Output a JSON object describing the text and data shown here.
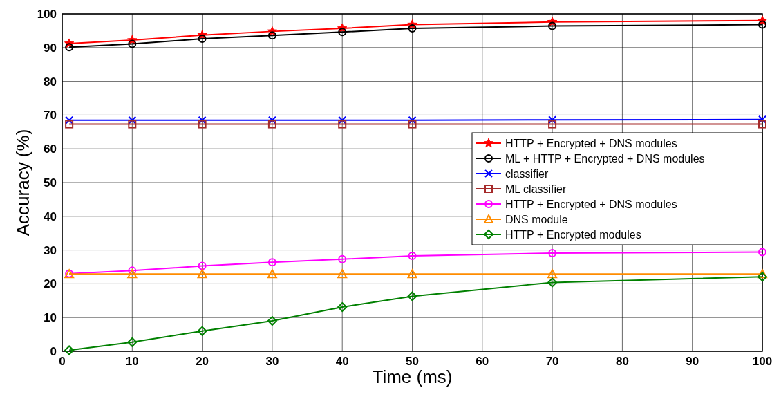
{
  "chart_data": {
    "type": "line",
    "xlabel": "Time (ms)",
    "ylabel": "Accuracy (%)",
    "x": [
      1,
      10,
      20,
      30,
      40,
      50,
      70,
      100
    ],
    "xlim": [
      0,
      100
    ],
    "xticks": [
      0,
      10,
      20,
      30,
      40,
      50,
      60,
      70,
      80,
      90,
      100
    ],
    "ylim": [
      0,
      100
    ],
    "yticks": [
      0,
      10,
      20,
      30,
      40,
      50,
      60,
      70,
      80,
      90,
      100
    ],
    "grid": true,
    "legend": "right",
    "line_style": "solid",
    "series": [
      {
        "name": "HTTP + Encrypted + DNS modules",
        "color": "#ff0000",
        "marker": "star",
        "values": [
          91.2,
          92.2,
          93.7,
          94.8,
          95.7,
          96.8,
          97.6,
          98.0
        ]
      },
      {
        "name": "ML + HTTP + Encrypted + DNS modules",
        "color": "#000000",
        "marker": "circle",
        "values": [
          90.1,
          91.1,
          92.6,
          93.6,
          94.6,
          95.7,
          96.4,
          96.8
        ]
      },
      {
        "name": "classifier",
        "color": "#0000ff",
        "marker": "cross",
        "values": [
          68.5,
          68.5,
          68.5,
          68.5,
          68.5,
          68.5,
          68.6,
          68.7
        ]
      },
      {
        "name": "ML classifier",
        "color": "#a52a2a",
        "marker": "square",
        "values": [
          67.3,
          67.3,
          67.3,
          67.3,
          67.3,
          67.3,
          67.3,
          67.3
        ]
      },
      {
        "name": "HTTP + Encrypted + DNS modules",
        "color": "#ff00ff",
        "marker": "circle",
        "values": [
          23.0,
          23.9,
          25.3,
          26.4,
          27.3,
          28.3,
          29.1,
          29.4
        ]
      },
      {
        "name": "DNS module",
        "color": "#ff8c00",
        "marker": "triangle",
        "values": [
          22.9,
          22.9,
          22.9,
          22.9,
          22.9,
          22.9,
          22.9,
          22.9
        ]
      },
      {
        "name": "HTTP + Encrypted modules",
        "color": "#008000",
        "marker": "diamond",
        "values": [
          0.3,
          2.7,
          6.0,
          9.0,
          13.1,
          16.3,
          20.4,
          22.1
        ]
      }
    ]
  }
}
